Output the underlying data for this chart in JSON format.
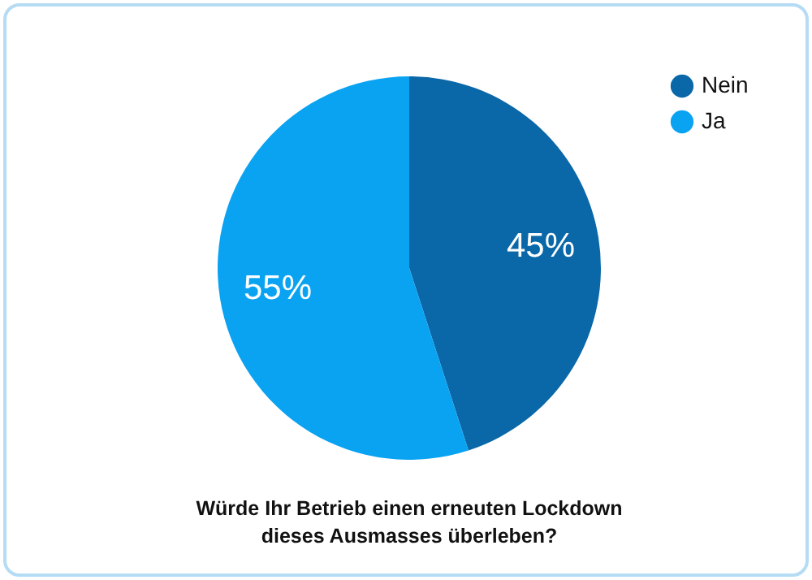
{
  "chart_data": {
    "type": "pie",
    "title": "Würde Ihr Betrieb einen erneuten Lockdown\ndieses Ausmasses überleben?",
    "categories": [
      "Nein",
      "Ja"
    ],
    "values": [
      45,
      55
    ],
    "colors": [
      "#0a68a8",
      "#0aa3f2"
    ],
    "value_labels": [
      "45%",
      "55%"
    ],
    "legend": "right"
  }
}
